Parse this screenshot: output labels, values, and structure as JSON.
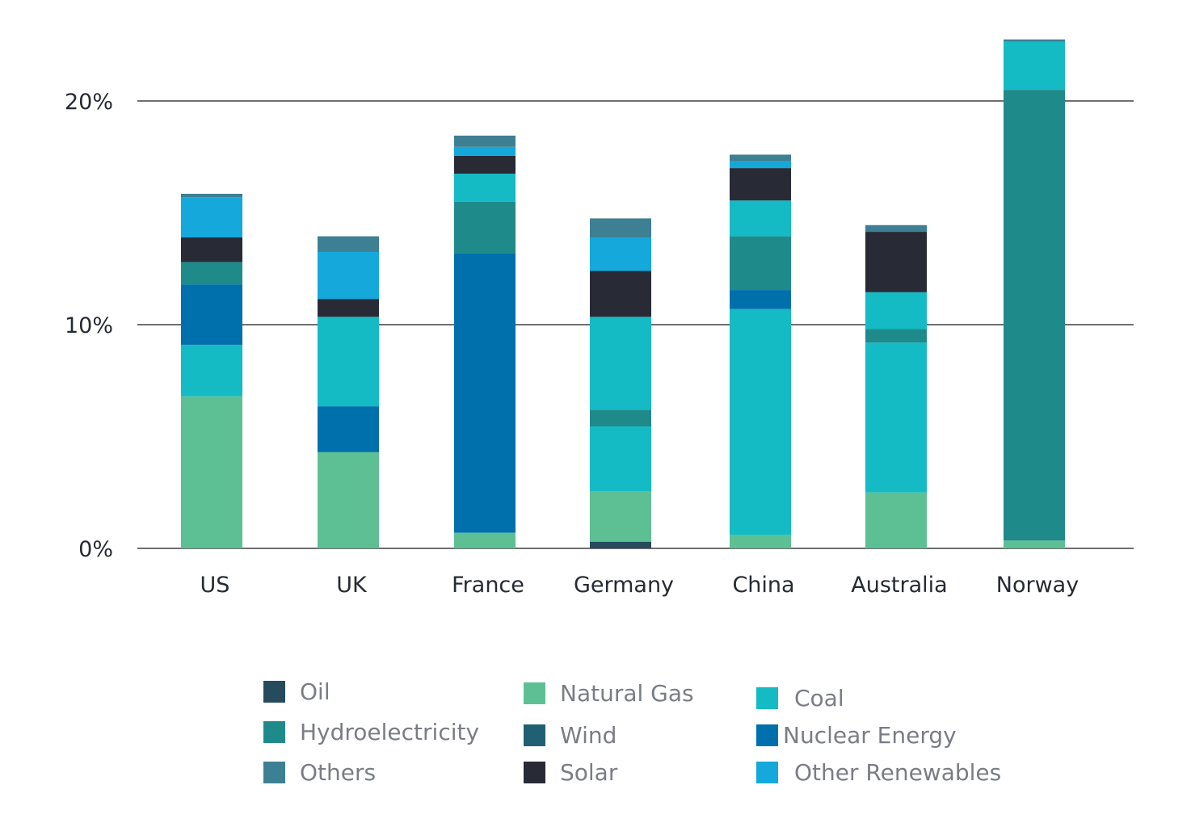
{
  "chart_data": {
    "type": "bar",
    "stacked": true,
    "title": "",
    "xlabel": "",
    "ylabel": "",
    "ylim": [
      0,
      22.8
    ],
    "yticks": [
      0,
      10,
      20
    ],
    "ytick_labels": [
      "0%",
      "10%",
      "20%"
    ],
    "grid": true,
    "legend_position": "bottom",
    "categories": [
      "US",
      "UK",
      "France",
      "Germany",
      "China",
      "Australia",
      "Norway"
    ],
    "series_colors": {
      "Oil": "#264b5d",
      "Natural Gas": "#5cc094",
      "Coal": "#14bbc4",
      "Hydroelectricity": "#1f8a8a",
      "Wind": "#215f73",
      "Nuclear Energy": "#0070ad",
      "Others": "#3d7f93",
      "Solar": "#282b36",
      "Other Renewables": "#14a8db"
    },
    "stacks": [
      {
        "category": "US",
        "segments": [
          {
            "series": "Natural Gas",
            "value": 6.8
          },
          {
            "series": "Coal",
            "value": 2.3
          },
          {
            "series": "Nuclear Energy",
            "value": 2.7
          },
          {
            "series": "Hydroelectricity",
            "value": 1.0
          },
          {
            "series": "Solar",
            "value": 1.1
          },
          {
            "series": "Other Renewables",
            "value": 1.8
          },
          {
            "series": "Others",
            "value": 0.15
          }
        ]
      },
      {
        "category": "UK",
        "segments": [
          {
            "series": "Natural Gas",
            "value": 4.3
          },
          {
            "series": "Nuclear Energy",
            "value": 2.05
          },
          {
            "series": "Coal",
            "value": 4.0
          },
          {
            "series": "Solar",
            "value": 0.8
          },
          {
            "series": "Other Renewables",
            "value": 2.1
          },
          {
            "series": "Others",
            "value": 0.7
          }
        ]
      },
      {
        "category": "France",
        "segments": [
          {
            "series": "Natural Gas",
            "value": 0.7
          },
          {
            "series": "Nuclear Energy",
            "value": 12.5
          },
          {
            "series": "Hydroelectricity",
            "value": 2.3
          },
          {
            "series": "Coal",
            "value": 1.25
          },
          {
            "series": "Solar",
            "value": 0.8
          },
          {
            "series": "Other Renewables",
            "value": 0.4
          },
          {
            "series": "Others",
            "value": 0.5
          }
        ]
      },
      {
        "category": "Germany",
        "segments": [
          {
            "series": "Oil",
            "value": 0.3
          },
          {
            "series": "Natural Gas",
            "value": 2.25
          },
          {
            "series": "Coal",
            "value": 2.9
          },
          {
            "series": "Hydroelectricity",
            "value": 0.75
          },
          {
            "series": "Coal",
            "value": 4.15
          },
          {
            "series": "Solar",
            "value": 2.05
          },
          {
            "series": "Other Renewables",
            "value": 1.5
          },
          {
            "series": "Others",
            "value": 0.85
          }
        ]
      },
      {
        "category": "China",
        "segments": [
          {
            "series": "Natural Gas",
            "value": 0.6
          },
          {
            "series": "Coal",
            "value": 10.1
          },
          {
            "series": "Nuclear Energy",
            "value": 0.85
          },
          {
            "series": "Hydroelectricity",
            "value": 2.4
          },
          {
            "series": "Coal",
            "value": 1.6
          },
          {
            "series": "Solar",
            "value": 1.45
          },
          {
            "series": "Other Renewables",
            "value": 0.3
          },
          {
            "series": "Others",
            "value": 0.3
          }
        ]
      },
      {
        "category": "Australia",
        "segments": [
          {
            "series": "Natural Gas",
            "value": 2.5
          },
          {
            "series": "Coal",
            "value": 6.7
          },
          {
            "series": "Hydroelectricity",
            "value": 0.6
          },
          {
            "series": "Coal",
            "value": 1.65
          },
          {
            "series": "Solar",
            "value": 2.7
          },
          {
            "series": "Others",
            "value": 0.3
          }
        ]
      },
      {
        "category": "Norway",
        "segments": [
          {
            "series": "Natural Gas",
            "value": 0.35
          },
          {
            "series": "Hydroelectricity",
            "value": 20.15
          },
          {
            "series": "Coal",
            "value": 2.15
          },
          {
            "series": "Others",
            "value": 0.1
          }
        ]
      }
    ],
    "legend": [
      {
        "label": "Oil",
        "series": "Oil"
      },
      {
        "label": "Hydroelectricity",
        "series": "Hydroelectricity"
      },
      {
        "label": "Others",
        "series": "Others"
      },
      {
        "label": "Natural Gas",
        "series": "Natural Gas"
      },
      {
        "label": "Wind",
        "series": "Wind"
      },
      {
        "label": "Solar",
        "series": "Solar"
      },
      {
        "label": "Coal",
        "series": "Coal"
      },
      {
        "label": "Nuclear Energy",
        "series": "Nuclear Energy"
      },
      {
        "label": "Other Renewables",
        "series": "Other Renewables"
      }
    ]
  }
}
